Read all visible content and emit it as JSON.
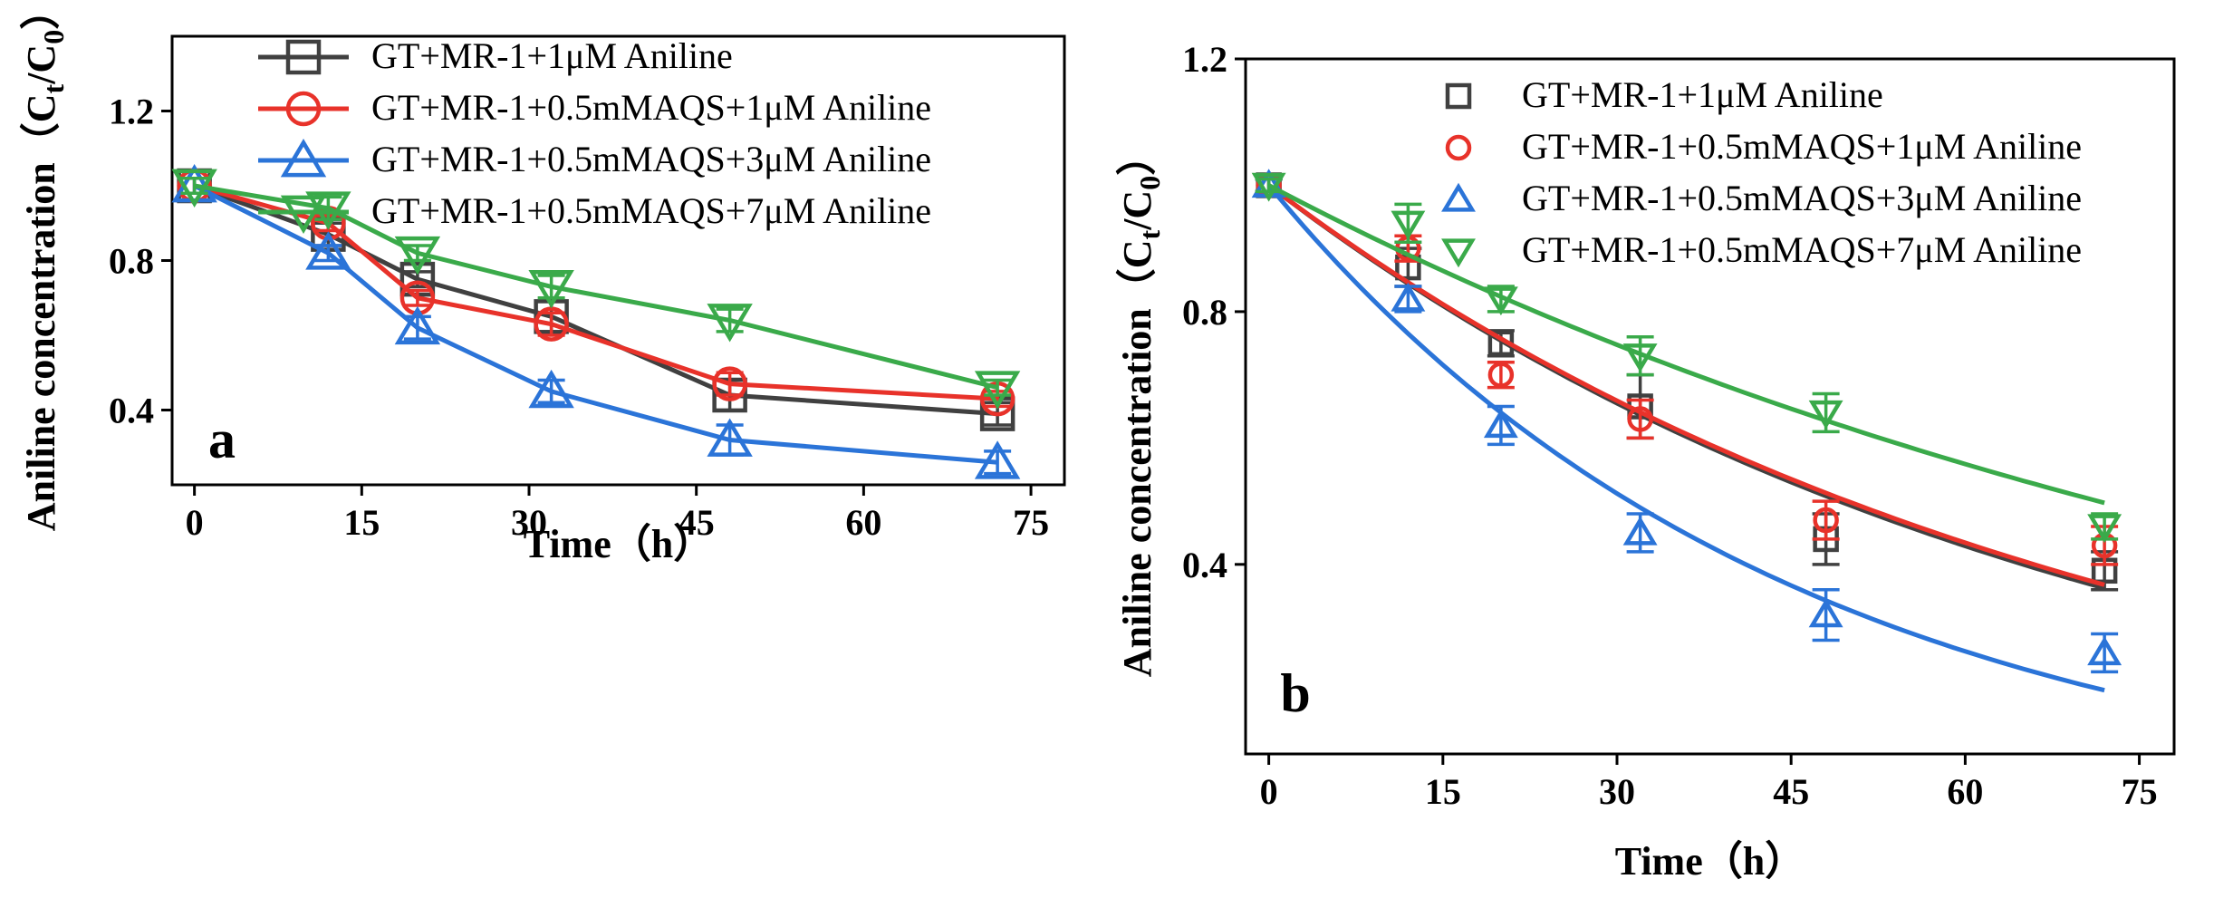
{
  "chart_data": [
    {
      "type": "line",
      "panel_label": "a",
      "xlabel": "Time（h）",
      "ylabel": "Aniline concentration（C",
      "ylabel_sub1": "t",
      "ylabel_mid": "/C",
      "ylabel_sub2": "0",
      "ylabel_end": "）",
      "xlim": [
        -2,
        78
      ],
      "ylim": [
        0.2,
        1.4
      ],
      "xticks": [
        0,
        15,
        30,
        45,
        60,
        75
      ],
      "yticks": [
        0.4,
        0.8,
        1.2
      ],
      "xtick_labels": [
        "0",
        "15",
        "30",
        "45",
        "60",
        "75"
      ],
      "ytick_labels": [
        "0.4",
        "0.8",
        "1.2"
      ],
      "legend_position": "top",
      "x": [
        0,
        12,
        20,
        32,
        48,
        72
      ],
      "series": [
        {
          "name": "GT+MR-1+1μM Aniline",
          "color": "#404040",
          "marker": "square",
          "values": [
            1.0,
            0.87,
            0.75,
            0.65,
            0.44,
            0.39
          ],
          "errors": [
            0.02,
            0.03,
            0.02,
            0.04,
            0.04,
            0.03
          ]
        },
        {
          "name": "GT+MR-1+0.5mMAQS+1μM Aniline",
          "color": "#e8322a",
          "marker": "circle",
          "values": [
            1.0,
            0.9,
            0.7,
            0.63,
            0.47,
            0.43
          ],
          "errors": [
            0.02,
            0.02,
            0.02,
            0.03,
            0.03,
            0.02
          ]
        },
        {
          "name": "GT+MR-1+0.5mMAQS+3μM Aniline",
          "color": "#2b74d8",
          "marker": "triangle-up",
          "values": [
            1.0,
            0.82,
            0.62,
            0.45,
            0.32,
            0.26
          ],
          "errors": [
            0.02,
            0.02,
            0.03,
            0.03,
            0.04,
            0.03
          ]
        },
        {
          "name": "GT+MR-1+0.5mMAQS+7μM Aniline",
          "color": "#3aaa4a",
          "marker": "triangle-down",
          "values": [
            1.0,
            0.94,
            0.82,
            0.73,
            0.64,
            0.46
          ],
          "errors": [
            0.02,
            0.03,
            0.02,
            0.03,
            0.03,
            0.02
          ]
        }
      ]
    },
    {
      "type": "scatter",
      "panel_label": "b",
      "xlabel": "Time（h）",
      "ylabel": "Aniline concentration（C",
      "ylabel_sub1": "t",
      "ylabel_mid": "/C",
      "ylabel_sub2": "0",
      "ylabel_end": "）",
      "xlim": [
        -2,
        78
      ],
      "ylim": [
        0.1,
        1.2
      ],
      "xticks": [
        0,
        15,
        30,
        45,
        60,
        75
      ],
      "yticks": [
        0.4,
        0.8,
        1.2
      ],
      "xtick_labels": [
        "0",
        "15",
        "30",
        "45",
        "60",
        "75"
      ],
      "ytick_labels": [
        "0.4",
        "0.8",
        "1.2"
      ],
      "legend_position": "top",
      "fit": "exponential decay C/C0 = exp(-k t)",
      "x": [
        0,
        12,
        20,
        32,
        48,
        72
      ],
      "series": [
        {
          "name": "GT+MR-1+1μM Aniline",
          "color": "#404040",
          "marker": "square",
          "values": [
            1.0,
            0.87,
            0.75,
            0.65,
            0.44,
            0.39
          ],
          "errors": [
            0.01,
            0.03,
            0.02,
            0.05,
            0.04,
            0.03
          ],
          "fit_k": 0.0141
        },
        {
          "name": "GT+MR-1+0.5mMAQS+1μM Aniline",
          "color": "#e8322a",
          "marker": "circle",
          "values": [
            1.0,
            0.9,
            0.7,
            0.63,
            0.47,
            0.43
          ],
          "errors": [
            0.01,
            0.02,
            0.02,
            0.03,
            0.03,
            0.03
          ],
          "fit_k": 0.0139
        },
        {
          "name": "GT+MR-1+0.5mMAQS+3μM Aniline",
          "color": "#2b74d8",
          "marker": "triangle-up",
          "values": [
            1.0,
            0.82,
            0.62,
            0.45,
            0.32,
            0.26
          ],
          "errors": [
            0.01,
            0.02,
            0.03,
            0.03,
            0.04,
            0.03
          ],
          "fit_k": 0.0223
        },
        {
          "name": "GT+MR-1+0.5mMAQS+7μM Aniline",
          "color": "#3aaa4a",
          "marker": "triangle-down",
          "values": [
            1.0,
            0.94,
            0.82,
            0.73,
            0.64,
            0.46
          ],
          "errors": [
            0.01,
            0.03,
            0.02,
            0.03,
            0.03,
            0.02
          ],
          "fit_k": 0.0097
        }
      ]
    }
  ]
}
